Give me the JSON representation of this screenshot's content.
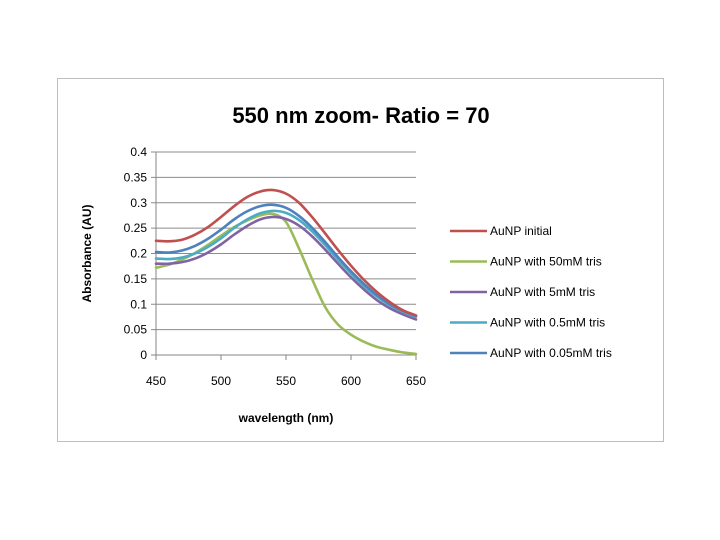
{
  "chart_data": {
    "type": "line",
    "title": "550 nm zoom- Ratio = 70",
    "xlabel": "wavelength (nm)",
    "ylabel": "Absorbance (AU)",
    "xlim": [
      450,
      650
    ],
    "ylim": [
      0,
      0.4
    ],
    "xticks": [
      450,
      500,
      550,
      600,
      650
    ],
    "yticks": [
      0,
      0.05,
      0.1,
      0.15,
      0.2,
      0.25,
      0.3,
      0.35,
      0.4
    ],
    "xtick_labels": [
      "450",
      "500",
      "550",
      "600",
      "650"
    ],
    "ytick_labels": [
      "0",
      "0.05",
      "0.1",
      "0.15",
      "0.2",
      "0.25",
      "0.3",
      "0.35",
      "0.4"
    ],
    "grid": true,
    "legend_position": "right",
    "x": [
      450,
      460,
      470,
      480,
      490,
      500,
      510,
      520,
      530,
      540,
      550,
      560,
      570,
      580,
      590,
      600,
      610,
      620,
      630,
      640,
      650
    ],
    "series": [
      {
        "name": "AuNP initial",
        "color": "#C0504D",
        "values": [
          0.225,
          0.224,
          0.227,
          0.237,
          0.252,
          0.272,
          0.293,
          0.311,
          0.322,
          0.325,
          0.318,
          0.3,
          0.272,
          0.24,
          0.207,
          0.176,
          0.148,
          0.124,
          0.104,
          0.088,
          0.078
        ]
      },
      {
        "name": "AuNP with 50mM tris",
        "color": "#9BBB59",
        "values": [
          0.172,
          0.178,
          0.188,
          0.201,
          0.217,
          0.235,
          0.252,
          0.265,
          0.275,
          0.278,
          0.262,
          0.21,
          0.15,
          0.095,
          0.06,
          0.04,
          0.026,
          0.016,
          0.01,
          0.005,
          0.002
        ]
      },
      {
        "name": "AuNP with 5mM tris",
        "color": "#8064A2",
        "values": [
          0.18,
          0.18,
          0.183,
          0.19,
          0.202,
          0.218,
          0.237,
          0.254,
          0.267,
          0.272,
          0.268,
          0.255,
          0.234,
          0.208,
          0.18,
          0.153,
          0.129,
          0.108,
          0.092,
          0.08,
          0.07
        ]
      },
      {
        "name": "AuNP with 0.5mM tris",
        "color": "#4BACC6",
        "values": [
          0.19,
          0.189,
          0.192,
          0.2,
          0.213,
          0.23,
          0.25,
          0.267,
          0.279,
          0.284,
          0.28,
          0.266,
          0.244,
          0.217,
          0.188,
          0.161,
          0.136,
          0.115,
          0.098,
          0.085,
          0.075
        ]
      },
      {
        "name": "AuNP with 0.05mM tris",
        "color": "#4F81BD",
        "values": [
          0.203,
          0.202,
          0.206,
          0.215,
          0.229,
          0.247,
          0.267,
          0.283,
          0.293,
          0.296,
          0.29,
          0.274,
          0.251,
          0.223,
          0.193,
          0.165,
          0.14,
          0.118,
          0.1,
          0.087,
          0.077
        ]
      }
    ]
  }
}
